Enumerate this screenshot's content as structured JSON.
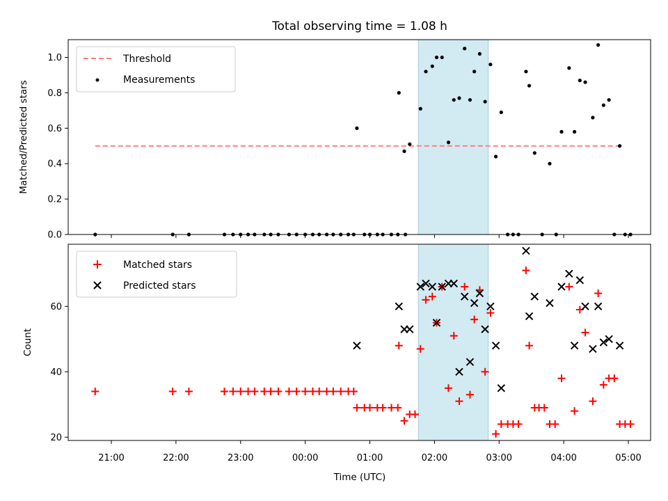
{
  "chart_data": [
    {
      "type": "scatter",
      "title": "Total observing time = 1.08 h",
      "ylabel": "Matched/Predicted stars",
      "xlabel": "",
      "ylim": [
        0,
        1.1
      ],
      "yticks": [
        "0.0",
        "0.2",
        "0.4",
        "0.6",
        "0.8",
        "1.0"
      ],
      "shaded_interval": [
        "01:45",
        "02:50"
      ],
      "series": [
        {
          "name": "Threshold",
          "kind": "dashed-line",
          "color": "#ff7f7f",
          "x": [
            "20:45",
            "04:53"
          ],
          "y": [
            0.5,
            0.5
          ]
        },
        {
          "name": "Measurements",
          "kind": "dots",
          "color": "#000000",
          "points": [
            [
              "20:45",
              0.0
            ],
            [
              "21:57",
              0.0
            ],
            [
              "22:12",
              0.0
            ],
            [
              "22:45",
              0.0
            ],
            [
              "22:53",
              0.0
            ],
            [
              "23:00",
              0.0
            ],
            [
              "23:07",
              0.0
            ],
            [
              "23:13",
              0.0
            ],
            [
              "23:22",
              0.0
            ],
            [
              "23:28",
              0.0
            ],
            [
              "23:35",
              0.0
            ],
            [
              "23:45",
              0.0
            ],
            [
              "23:52",
              0.0
            ],
            [
              "00:00",
              0.0
            ],
            [
              "00:07",
              0.0
            ],
            [
              "00:13",
              0.0
            ],
            [
              "00:20",
              0.0
            ],
            [
              "00:26",
              0.0
            ],
            [
              "00:33",
              0.0
            ],
            [
              "00:40",
              0.0
            ],
            [
              "00:45",
              0.0
            ],
            [
              "00:48",
              0.6
            ],
            [
              "00:55",
              0.0
            ],
            [
              "01:00",
              0.0
            ],
            [
              "01:07",
              0.0
            ],
            [
              "01:12",
              0.0
            ],
            [
              "01:20",
              0.0
            ],
            [
              "01:26",
              0.0
            ],
            [
              "01:33",
              0.0
            ],
            [
              "01:27",
              0.8
            ],
            [
              "01:32",
              0.47
            ],
            [
              "01:37",
              0.51
            ],
            [
              "01:47",
              0.71
            ],
            [
              "01:52",
              0.92
            ],
            [
              "01:58",
              0.95
            ],
            [
              "02:02",
              1.0
            ],
            [
              "02:07",
              1.0
            ],
            [
              "02:13",
              0.52
            ],
            [
              "02:18",
              0.76
            ],
            [
              "02:23",
              0.77
            ],
            [
              "02:28",
              1.05
            ],
            [
              "02:33",
              0.76
            ],
            [
              "02:37",
              0.92
            ],
            [
              "02:42",
              1.02
            ],
            [
              "02:47",
              0.75
            ],
            [
              "02:52",
              0.96
            ],
            [
              "02:57",
              0.44
            ],
            [
              "03:02",
              0.69
            ],
            [
              "03:08",
              0.0
            ],
            [
              "03:13",
              0.0
            ],
            [
              "03:18",
              0.0
            ],
            [
              "03:25",
              0.92
            ],
            [
              "03:28",
              0.84
            ],
            [
              "03:33",
              0.46
            ],
            [
              "03:40",
              0.0
            ],
            [
              "03:47",
              0.4
            ],
            [
              "03:53",
              0.0
            ],
            [
              "03:58",
              0.58
            ],
            [
              "04:05",
              0.94
            ],
            [
              "04:10",
              0.58
            ],
            [
              "04:15",
              0.87
            ],
            [
              "04:20",
              0.86
            ],
            [
              "04:27",
              0.66
            ],
            [
              "04:32",
              1.07
            ],
            [
              "04:37",
              0.73
            ],
            [
              "04:42",
              0.76
            ],
            [
              "04:47",
              0.0
            ],
            [
              "04:52",
              0.5
            ],
            [
              "04:57",
              0.0
            ],
            [
              "05:02",
              0.0
            ]
          ]
        }
      ],
      "legend": "top-left"
    },
    {
      "type": "scatter",
      "title": "",
      "ylabel": "Count",
      "xlabel": "Time (UTC)",
      "ylim": [
        19,
        79
      ],
      "yticks": [
        "20",
        "40",
        "60"
      ],
      "xticks": [
        "21:00",
        "22:00",
        "23:00",
        "00:00",
        "01:00",
        "02:00",
        "03:00",
        "04:00",
        "05:00"
      ],
      "shaded_interval": [
        "01:45",
        "02:50"
      ],
      "series": [
        {
          "name": "Matched stars",
          "marker": "plus",
          "color": "#ff0000",
          "points": [
            [
              "20:45",
              34
            ],
            [
              "21:57",
              34
            ],
            [
              "22:12",
              34
            ],
            [
              "22:45",
              34
            ],
            [
              "22:53",
              34
            ],
            [
              "23:00",
              34
            ],
            [
              "23:07",
              34
            ],
            [
              "23:13",
              34
            ],
            [
              "23:22",
              34
            ],
            [
              "23:28",
              34
            ],
            [
              "23:35",
              34
            ],
            [
              "23:45",
              34
            ],
            [
              "23:52",
              34
            ],
            [
              "00:00",
              34
            ],
            [
              "00:07",
              34
            ],
            [
              "00:13",
              34
            ],
            [
              "00:20",
              34
            ],
            [
              "00:26",
              34
            ],
            [
              "00:33",
              34
            ],
            [
              "00:40",
              34
            ],
            [
              "00:45",
              34
            ],
            [
              "00:48",
              29
            ],
            [
              "00:55",
              29
            ],
            [
              "01:00",
              29
            ],
            [
              "01:07",
              29
            ],
            [
              "01:12",
              29
            ],
            [
              "01:20",
              29
            ],
            [
              "01:26",
              29
            ],
            [
              "01:27",
              48
            ],
            [
              "01:32",
              25
            ],
            [
              "01:37",
              27
            ],
            [
              "01:42",
              27
            ],
            [
              "01:47",
              47
            ],
            [
              "01:52",
              62
            ],
            [
              "01:58",
              63
            ],
            [
              "02:02",
              55
            ],
            [
              "02:07",
              66
            ],
            [
              "02:13",
              35
            ],
            [
              "02:18",
              51
            ],
            [
              "02:23",
              31
            ],
            [
              "02:28",
              66
            ],
            [
              "02:33",
              33
            ],
            [
              "02:37",
              56
            ],
            [
              "02:42",
              65
            ],
            [
              "02:47",
              40
            ],
            [
              "02:52",
              58
            ],
            [
              "02:57",
              21
            ],
            [
              "03:02",
              24
            ],
            [
              "03:08",
              24
            ],
            [
              "03:13",
              24
            ],
            [
              "03:18",
              24
            ],
            [
              "03:25",
              71
            ],
            [
              "03:28",
              48
            ],
            [
              "03:33",
              29
            ],
            [
              "03:37",
              29
            ],
            [
              "03:42",
              29
            ],
            [
              "03:47",
              24
            ],
            [
              "03:52",
              24
            ],
            [
              "03:58",
              38
            ],
            [
              "04:05",
              66
            ],
            [
              "04:10",
              28
            ],
            [
              "04:15",
              59
            ],
            [
              "04:20",
              52
            ],
            [
              "04:27",
              31
            ],
            [
              "04:32",
              64
            ],
            [
              "04:37",
              36
            ],
            [
              "04:42",
              38
            ],
            [
              "04:47",
              38
            ],
            [
              "04:52",
              24
            ],
            [
              "04:57",
              24
            ],
            [
              "05:02",
              24
            ]
          ]
        },
        {
          "name": "Predicted stars",
          "marker": "x",
          "color": "#000000",
          "points": [
            [
              "00:48",
              48
            ],
            [
              "01:27",
              60
            ],
            [
              "01:32",
              53
            ],
            [
              "01:37",
              53
            ],
            [
              "01:47",
              66
            ],
            [
              "01:52",
              67
            ],
            [
              "01:58",
              66
            ],
            [
              "02:02",
              55
            ],
            [
              "02:07",
              66
            ],
            [
              "02:13",
              67
            ],
            [
              "02:18",
              67
            ],
            [
              "02:23",
              40
            ],
            [
              "02:28",
              63
            ],
            [
              "02:33",
              43
            ],
            [
              "02:37",
              61
            ],
            [
              "02:42",
              64
            ],
            [
              "02:47",
              53
            ],
            [
              "02:52",
              60
            ],
            [
              "02:57",
              48
            ],
            [
              "03:02",
              35
            ],
            [
              "03:25",
              77
            ],
            [
              "03:28",
              57
            ],
            [
              "03:33",
              63
            ],
            [
              "03:47",
              61
            ],
            [
              "03:58",
              66
            ],
            [
              "04:05",
              70
            ],
            [
              "04:10",
              48
            ],
            [
              "04:15",
              68
            ],
            [
              "04:20",
              60
            ],
            [
              "04:27",
              47
            ],
            [
              "04:32",
              60
            ],
            [
              "04:37",
              49
            ],
            [
              "04:42",
              50
            ],
            [
              "04:52",
              48
            ]
          ]
        }
      ],
      "legend": "top-left"
    }
  ]
}
